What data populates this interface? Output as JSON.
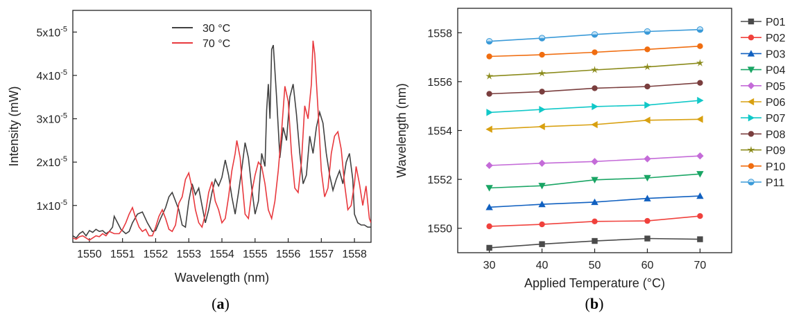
{
  "panel_labels": {
    "a": {
      "pre": "(",
      "letter": "a",
      "post": ")"
    },
    "b": {
      "pre": "(",
      "letter": "b",
      "post": ")"
    }
  },
  "chart_data": [
    {
      "type": "line",
      "panel": "a",
      "xlabel": "Wavelength (nm)",
      "ylabel": "Intensity (mW)",
      "xlim": [
        1549.5,
        1558.5
      ],
      "ylim": [
        1.5e-06,
        5.5e-05
      ],
      "xticks": [
        1550,
        1551,
        1552,
        1553,
        1554,
        1555,
        1556,
        1557,
        1558
      ],
      "ytick_values": [
        1e-05,
        2e-05,
        3e-05,
        4e-05,
        5e-05
      ],
      "ytick_mantissas": [
        "1x10",
        "2x10",
        "3x10",
        "4x10",
        "5x10"
      ],
      "ytick_exponent": "-5",
      "legend_position": "top-center",
      "series": [
        {
          "name": "30 °C",
          "color": "#404040",
          "points": [
            [
              1549.5,
              3e-06
            ],
            [
              1549.6,
              2.5e-06
            ],
            [
              1549.7,
              3.5e-06
            ],
            [
              1549.8,
              4e-06
            ],
            [
              1549.9,
              3e-06
            ],
            [
              1550.0,
              4.2e-06
            ],
            [
              1550.1,
              3.8e-06
            ],
            [
              1550.2,
              4.5e-06
            ],
            [
              1550.3,
              4e-06
            ],
            [
              1550.4,
              4.2e-06
            ],
            [
              1550.5,
              3.5e-06
            ],
            [
              1550.6,
              4e-06
            ],
            [
              1550.7,
              5e-06
            ],
            [
              1550.75,
              7.5e-06
            ],
            [
              1550.85,
              6e-06
            ],
            [
              1550.95,
              4.5e-06
            ],
            [
              1551.1,
              3.5e-06
            ],
            [
              1551.2,
              4e-06
            ],
            [
              1551.3,
              6e-06
            ],
            [
              1551.45,
              8e-06
            ],
            [
              1551.6,
              8.5e-06
            ],
            [
              1551.75,
              6e-06
            ],
            [
              1551.9,
              4e-06
            ],
            [
              1552.0,
              4.2e-06
            ],
            [
              1552.15,
              7e-06
            ],
            [
              1552.3,
              9.5e-06
            ],
            [
              1552.4,
              1.2e-05
            ],
            [
              1552.5,
              1.3e-05
            ],
            [
              1552.6,
              1.1e-05
            ],
            [
              1552.7,
              9e-06
            ],
            [
              1552.8,
              5.5e-06
            ],
            [
              1552.9,
              5e-06
            ],
            [
              1553.0,
              1.1e-05
            ],
            [
              1553.1,
              1.5e-05
            ],
            [
              1553.2,
              1.25e-05
            ],
            [
              1553.3,
              1.4e-05
            ],
            [
              1553.4,
              1e-05
            ],
            [
              1553.5,
              6e-06
            ],
            [
              1553.6,
              9e-06
            ],
            [
              1553.7,
              1.3e-05
            ],
            [
              1553.8,
              1.6e-05
            ],
            [
              1553.9,
              1.45e-05
            ],
            [
              1554.0,
              1.65e-05
            ],
            [
              1554.1,
              2.05e-05
            ],
            [
              1554.2,
              1.7e-05
            ],
            [
              1554.3,
              1.2e-05
            ],
            [
              1554.4,
              8e-06
            ],
            [
              1554.5,
              1.3e-05
            ],
            [
              1554.6,
              1.85e-05
            ],
            [
              1554.7,
              2.45e-05
            ],
            [
              1554.8,
              2.1e-05
            ],
            [
              1554.9,
              1.4e-05
            ],
            [
              1555.0,
              8e-06
            ],
            [
              1555.1,
              1.1e-05
            ],
            [
              1555.2,
              2.2e-05
            ],
            [
              1555.3,
              1.9e-05
            ],
            [
              1555.35,
              3.2e-05
            ],
            [
              1555.4,
              3.8e-05
            ],
            [
              1555.45,
              3e-05
            ],
            [
              1555.5,
              4.6e-05
            ],
            [
              1555.55,
              4.7e-05
            ],
            [
              1555.65,
              3.5e-05
            ],
            [
              1555.75,
              2.1e-05
            ],
            [
              1555.85,
              2.8e-05
            ],
            [
              1555.95,
              2.5e-05
            ],
            [
              1556.05,
              3.5e-05
            ],
            [
              1556.15,
              3.8e-05
            ],
            [
              1556.25,
              3.1e-05
            ],
            [
              1556.35,
              2.2e-05
            ],
            [
              1556.45,
              1.5e-05
            ],
            [
              1556.55,
              1.7e-05
            ],
            [
              1556.65,
              2.6e-05
            ],
            [
              1556.75,
              2.2e-05
            ],
            [
              1556.85,
              2.8e-05
            ],
            [
              1556.95,
              3.15e-05
            ],
            [
              1557.05,
              2.9e-05
            ],
            [
              1557.15,
              2.2e-05
            ],
            [
              1557.25,
              1.7e-05
            ],
            [
              1557.35,
              1.35e-05
            ],
            [
              1557.45,
              1.6e-05
            ],
            [
              1557.55,
              1.8e-05
            ],
            [
              1557.65,
              1.5e-05
            ],
            [
              1557.75,
              2e-05
            ],
            [
              1557.85,
              2.2e-05
            ],
            [
              1557.95,
              1.6e-05
            ],
            [
              1558.0,
              8e-06
            ],
            [
              1558.1,
              6e-06
            ],
            [
              1558.2,
              5.5e-06
            ],
            [
              1558.3,
              5.5e-06
            ],
            [
              1558.4,
              5e-06
            ],
            [
              1558.5,
              5e-06
            ]
          ]
        },
        {
          "name": "70 °C",
          "color": "#e8383d",
          "points": [
            [
              1549.5,
              2.5e-06
            ],
            [
              1549.6,
              2.2e-06
            ],
            [
              1549.7,
              2.8e-06
            ],
            [
              1549.8,
              3e-06
            ],
            [
              1549.9,
              2.5e-06
            ],
            [
              1550.0,
              2e-06
            ],
            [
              1550.1,
              2.5e-06
            ],
            [
              1550.2,
              3e-06
            ],
            [
              1550.3,
              2.8e-06
            ],
            [
              1550.4,
              3.5e-06
            ],
            [
              1550.5,
              3e-06
            ],
            [
              1550.6,
              4e-06
            ],
            [
              1550.75,
              3.5e-06
            ],
            [
              1550.9,
              3.5e-06
            ],
            [
              1551.0,
              4.5e-06
            ],
            [
              1551.1,
              6e-06
            ],
            [
              1551.2,
              8e-06
            ],
            [
              1551.3,
              9.5e-06
            ],
            [
              1551.4,
              7e-06
            ],
            [
              1551.5,
              5e-06
            ],
            [
              1551.6,
              4e-06
            ],
            [
              1551.7,
              4.5e-06
            ],
            [
              1551.8,
              3e-06
            ],
            [
              1551.9,
              3e-06
            ],
            [
              1552.0,
              5e-06
            ],
            [
              1552.1,
              7.5e-06
            ],
            [
              1552.2,
              9e-06
            ],
            [
              1552.3,
              7e-06
            ],
            [
              1552.4,
              4.5e-06
            ],
            [
              1552.5,
              4e-06
            ],
            [
              1552.6,
              5.5e-06
            ],
            [
              1552.7,
              1.05e-05
            ],
            [
              1552.8,
              1.2e-05
            ],
            [
              1552.9,
              1.6e-05
            ],
            [
              1553.0,
              1.75e-05
            ],
            [
              1553.1,
              1.4e-05
            ],
            [
              1553.2,
              9e-06
            ],
            [
              1553.3,
              6e-06
            ],
            [
              1553.4,
              5e-06
            ],
            [
              1553.5,
              8e-06
            ],
            [
              1553.6,
              1.3e-05
            ],
            [
              1553.7,
              1.55e-05
            ],
            [
              1553.8,
              1.1e-05
            ],
            [
              1553.9,
              9e-06
            ],
            [
              1554.0,
              6e-06
            ],
            [
              1554.1,
              7e-06
            ],
            [
              1554.2,
              1.2e-05
            ],
            [
              1554.3,
              1.8e-05
            ],
            [
              1554.4,
              2.2e-05
            ],
            [
              1554.45,
              2.5e-05
            ],
            [
              1554.55,
              2.1e-05
            ],
            [
              1554.6,
              1.6e-05
            ],
            [
              1554.7,
              8e-06
            ],
            [
              1554.8,
              7e-06
            ],
            [
              1554.9,
              1.3e-05
            ],
            [
              1555.0,
              1.7e-05
            ],
            [
              1555.1,
              2e-05
            ],
            [
              1555.2,
              1.9e-05
            ],
            [
              1555.3,
              1.5e-05
            ],
            [
              1555.4,
              9e-06
            ],
            [
              1555.5,
              7e-06
            ],
            [
              1555.6,
              1.1e-05
            ],
            [
              1555.7,
              1.8e-05
            ],
            [
              1555.8,
              2.7e-05
            ],
            [
              1555.9,
              3.75e-05
            ],
            [
              1556.0,
              3.4e-05
            ],
            [
              1556.1,
              2.2e-05
            ],
            [
              1556.2,
              1.4e-05
            ],
            [
              1556.3,
              1.3e-05
            ],
            [
              1556.4,
              2e-05
            ],
            [
              1556.5,
              3.3e-05
            ],
            [
              1556.6,
              3e-05
            ],
            [
              1556.7,
              3.8e-05
            ],
            [
              1556.75,
              4.8e-05
            ],
            [
              1556.8,
              4.5e-05
            ],
            [
              1556.9,
              3.2e-05
            ],
            [
              1557.0,
              1.8e-05
            ],
            [
              1557.1,
              1.2e-05
            ],
            [
              1557.2,
              1.4e-05
            ],
            [
              1557.3,
              2.2e-05
            ],
            [
              1557.4,
              2.6e-05
            ],
            [
              1557.5,
              2.7e-05
            ],
            [
              1557.6,
              2.3e-05
            ],
            [
              1557.7,
              1.5e-05
            ],
            [
              1557.8,
              9e-06
            ],
            [
              1557.9,
              1e-05
            ],
            [
              1558.0,
              1.5e-05
            ],
            [
              1558.05,
              1.9e-05
            ],
            [
              1558.15,
              1.5e-05
            ],
            [
              1558.25,
              1e-05
            ],
            [
              1558.35,
              1.45e-05
            ],
            [
              1558.45,
              7e-06
            ],
            [
              1558.5,
              6e-06
            ]
          ]
        }
      ]
    },
    {
      "type": "line",
      "panel": "b",
      "xlabel": "Applied Temperature (°C)",
      "ylabel": "Wavelength (nm)",
      "xlim": [
        24,
        76
      ],
      "ylim": [
        1549,
        1559
      ],
      "xticks": [
        30,
        40,
        50,
        60,
        70
      ],
      "yticks": [
        1550,
        1552,
        1554,
        1556,
        1558
      ],
      "legend_position": "right",
      "x": [
        30,
        40,
        50,
        60,
        70
      ],
      "series": [
        {
          "name": "P01",
          "color": "#4a4a4a",
          "marker": "square",
          "values": [
            1549.2,
            1549.35,
            1549.48,
            1549.58,
            1549.55
          ]
        },
        {
          "name": "P02",
          "color": "#f0413c",
          "marker": "circle",
          "values": [
            1550.08,
            1550.16,
            1550.28,
            1550.3,
            1550.5
          ]
        },
        {
          "name": "P03",
          "color": "#1060c0",
          "marker": "triangle-up",
          "values": [
            1550.86,
            1550.98,
            1551.07,
            1551.22,
            1551.32
          ]
        },
        {
          "name": "P04",
          "color": "#19a564",
          "marker": "triangle-down",
          "values": [
            1551.65,
            1551.74,
            1551.98,
            1552.06,
            1552.22
          ]
        },
        {
          "name": "P05",
          "color": "#c46bd8",
          "marker": "diamond",
          "values": [
            1552.57,
            1552.66,
            1552.73,
            1552.84,
            1552.96
          ]
        },
        {
          "name": "P06",
          "color": "#d8a010",
          "marker": "triangle-left",
          "values": [
            1554.05,
            1554.16,
            1554.24,
            1554.42,
            1554.46
          ]
        },
        {
          "name": "P07",
          "color": "#10c8c8",
          "marker": "triangle-right",
          "values": [
            1554.74,
            1554.86,
            1554.98,
            1555.04,
            1555.23
          ]
        },
        {
          "name": "P08",
          "color": "#7a3e3e",
          "marker": "circle",
          "values": [
            1555.5,
            1555.59,
            1555.73,
            1555.8,
            1555.95
          ]
        },
        {
          "name": "P09",
          "color": "#8a8a1a",
          "marker": "star",
          "values": [
            1556.22,
            1556.34,
            1556.48,
            1556.6,
            1556.76
          ]
        },
        {
          "name": "P10",
          "color": "#f06d10",
          "marker": "circle",
          "values": [
            1557.03,
            1557.1,
            1557.2,
            1557.32,
            1557.45
          ]
        },
        {
          "name": "P11",
          "color": "#3a9ad8",
          "marker": "circle-half",
          "values": [
            1557.65,
            1557.78,
            1557.93,
            1558.05,
            1558.13
          ]
        }
      ]
    }
  ]
}
